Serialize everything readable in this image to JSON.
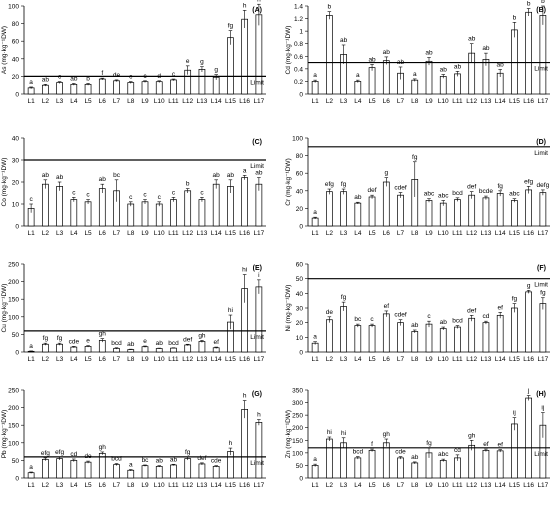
{
  "x_labels": [
    "L1",
    "L2",
    "L3",
    "L4",
    "L5",
    "L6",
    "L7",
    "L8",
    "L9",
    "L10",
    "L11",
    "L12",
    "L13",
    "L14",
    "L15",
    "L16",
    "L17"
  ],
  "limit_label": "Limit",
  "chart_data": [
    {
      "type": "bar",
      "panel": "(A)",
      "ylabel": "As (mg·kg⁻¹DW)",
      "ylim": [
        0,
        100
      ],
      "yticks": [
        0,
        20,
        40,
        60,
        80,
        100
      ],
      "limit": 20,
      "values": [
        7,
        10,
        13,
        11,
        11,
        17,
        15,
        13,
        14,
        14,
        16,
        27,
        28,
        19,
        64,
        85,
        90
      ],
      "errors": [
        1,
        1,
        1,
        1,
        1,
        1,
        1,
        1,
        1,
        1,
        1,
        5,
        3,
        3,
        8,
        10,
        12
      ],
      "letters": [
        "a",
        "ab",
        "c",
        "ab",
        "b",
        "f",
        "de",
        "c",
        "c",
        "d",
        "c",
        "e",
        "g",
        "g",
        "fg",
        "h",
        "h"
      ]
    },
    {
      "type": "bar",
      "panel": "(B)",
      "ylabel": "Cd (mg·kg⁻¹DW)",
      "ylim": [
        0,
        1.4
      ],
      "yticks": [
        0,
        0.2,
        0.4,
        0.6,
        0.8,
        1,
        1.2,
        1.4
      ],
      "limit": 0.5,
      "values": [
        0.2,
        1.25,
        0.63,
        0.2,
        0.42,
        0.53,
        0.33,
        0.22,
        0.52,
        0.28,
        0.32,
        0.65,
        0.55,
        0.33,
        1.02,
        1.3,
        1.25
      ],
      "errors": [
        0.02,
        0.06,
        0.15,
        0.02,
        0.05,
        0.06,
        0.1,
        0.02,
        0.06,
        0.03,
        0.04,
        0.15,
        0.1,
        0.06,
        0.12,
        0.06,
        0.15
      ],
      "letters": [
        "a",
        "b",
        "ab",
        "a",
        "ab",
        "ab",
        "ab",
        "a",
        "ab",
        "ab",
        "ab",
        "ab",
        "ab",
        "ab",
        "b",
        "b",
        "b"
      ]
    },
    {
      "type": "bar",
      "panel": "(C)",
      "ylabel": "Co (mg·kg⁻¹DW)",
      "ylim": [
        0,
        40
      ],
      "yticks": [
        0,
        10,
        20,
        30,
        40
      ],
      "limit": 30,
      "values": [
        8,
        19,
        18,
        12,
        11,
        17,
        16,
        10,
        11,
        10,
        12,
        16,
        12,
        19,
        18,
        22,
        19
      ],
      "errors": [
        2,
        2,
        2,
        1,
        1,
        2,
        5,
        1,
        1,
        1,
        1,
        1,
        1,
        2,
        3,
        1,
        3
      ],
      "letters": [
        "c",
        "ab",
        "ab",
        "c",
        "c",
        "ab",
        "bc",
        "c",
        "c",
        "c",
        "c",
        "b",
        "c",
        "ab",
        "ab",
        "a",
        "ab"
      ]
    },
    {
      "type": "bar",
      "panel": "(D)",
      "ylabel": "Cr (mg·kg⁻¹DW)",
      "ylim": [
        0,
        100
      ],
      "yticks": [
        0,
        20,
        40,
        60,
        80,
        100
      ],
      "limit": 90,
      "values": [
        9,
        39,
        39,
        26,
        33,
        50,
        35,
        53,
        29,
        26,
        30,
        35,
        32,
        37,
        29,
        41,
        38
      ],
      "errors": [
        1,
        3,
        3,
        1,
        2,
        5,
        3,
        20,
        2,
        3,
        2,
        4,
        2,
        3,
        2,
        4,
        3
      ],
      "letters": [
        "a",
        "efg",
        "fg",
        "ab",
        "def",
        "g",
        "cdef",
        "fg",
        "abc",
        "abc",
        "bcd",
        "def",
        "bcde",
        "fg",
        "abc",
        "efg",
        "defg"
      ]
    },
    {
      "type": "bar",
      "panel": "(E)",
      "ylabel": "Cu (mg·kg⁻¹DW)",
      "ylim": [
        0,
        250
      ],
      "yticks": [
        0,
        50,
        100,
        150,
        200,
        250
      ],
      "limit": 60,
      "values": [
        2,
        22,
        22,
        14,
        16,
        33,
        10,
        7,
        15,
        10,
        11,
        20,
        30,
        12,
        85,
        180,
        185
      ],
      "errors": [
        1,
        3,
        3,
        2,
        2,
        5,
        2,
        1,
        2,
        1,
        1,
        2,
        3,
        2,
        20,
        40,
        20
      ],
      "letters": [
        "a",
        "fg",
        "fg",
        "cde",
        "e",
        "gh",
        "bcd",
        "ab",
        "e",
        "ab",
        "bcd",
        "def",
        "gh",
        "ef",
        "hi",
        "hi",
        "i"
      ]
    },
    {
      "type": "bar",
      "panel": "(F)",
      "ylabel": "Ni (mg·kg⁻¹DW)",
      "ylim": [
        0,
        60
      ],
      "yticks": [
        0,
        10,
        20,
        30,
        40,
        50,
        60
      ],
      "limit": 50,
      "values": [
        6,
        22,
        31,
        18,
        18,
        26,
        20,
        14,
        19,
        16,
        17,
        23,
        20,
        25,
        30,
        41,
        33
      ],
      "errors": [
        1,
        2,
        3,
        1,
        1,
        2,
        2,
        1,
        2,
        1,
        1,
        2,
        1,
        2,
        3,
        1,
        4
      ],
      "letters": [
        "a",
        "de",
        "fg",
        "bc",
        "c",
        "ef",
        "cdef",
        "ab",
        "c",
        "ab",
        "bcd",
        "def",
        "cd",
        "ef",
        "fg",
        "g",
        "fg"
      ]
    },
    {
      "type": "bar",
      "panel": "(G)",
      "ylabel": "Pb (mg·kg⁻¹DW)",
      "ylim": [
        0,
        250
      ],
      "yticks": [
        0,
        50,
        100,
        150,
        200,
        250
      ],
      "limit": 60,
      "values": [
        15,
        53,
        55,
        50,
        45,
        70,
        38,
        22,
        35,
        33,
        37,
        55,
        40,
        33,
        75,
        195,
        158
      ],
      "errors": [
        2,
        4,
        4,
        4,
        3,
        4,
        3,
        2,
        2,
        2,
        2,
        4,
        3,
        2,
        10,
        25,
        8
      ],
      "letters": [
        "a",
        "efg",
        "efg",
        "cd",
        "de",
        "gh",
        "bcd",
        "a",
        "bc",
        "ab",
        "ab",
        "fg",
        "def",
        "cde",
        "h",
        "h",
        "h"
      ]
    },
    {
      "type": "bar",
      "panel": "(H)",
      "ylabel": "Zn (mg·kg⁻¹DW)",
      "ylim": [
        0,
        350
      ],
      "yticks": [
        0,
        50,
        100,
        150,
        200,
        250,
        300,
        350
      ],
      "limit": 120,
      "values": [
        50,
        155,
        140,
        80,
        110,
        140,
        80,
        60,
        100,
        70,
        80,
        130,
        110,
        108,
        215,
        318,
        210
      ],
      "errors": [
        5,
        8,
        20,
        5,
        5,
        15,
        5,
        4,
        20,
        5,
        12,
        20,
        5,
        5,
        25,
        10,
        50
      ],
      "letters": [
        "a",
        "hi",
        "hi",
        "bcd",
        "f",
        "gh",
        "cde",
        "ab",
        "fg",
        "abc",
        "cd",
        "gh",
        "ef",
        "ef",
        "ij",
        "j",
        "ij"
      ]
    }
  ]
}
